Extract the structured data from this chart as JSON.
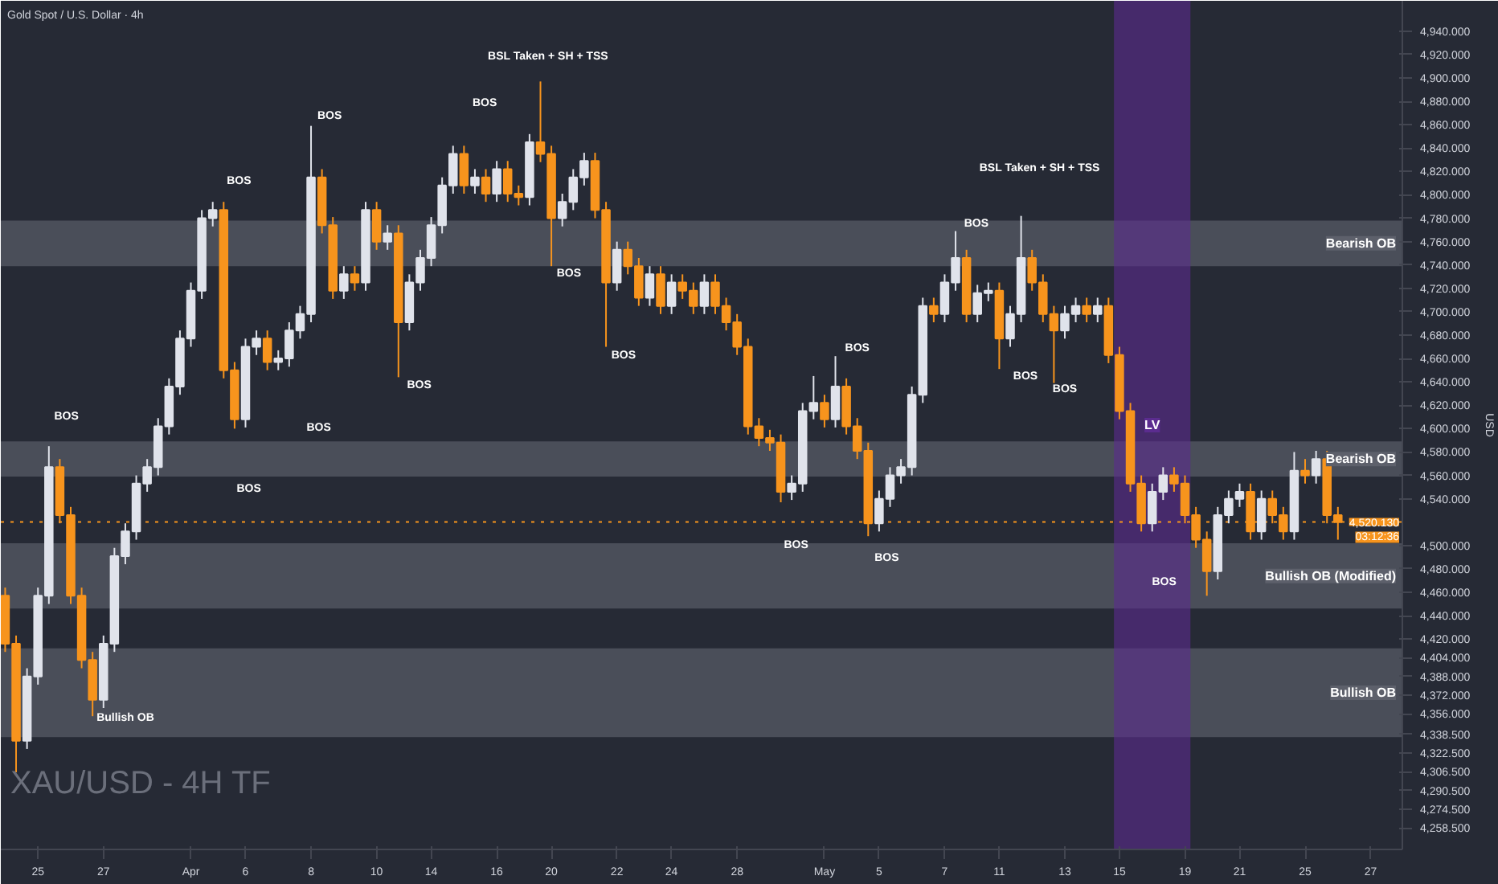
{
  "chart_data": {
    "type": "candlestick",
    "title": "XAU/USD - 4H TF",
    "subtitle": "Gold Spot / U.S. Dollar · 4h",
    "ylabel": "USD",
    "categories": [
      null,
      null,
      null,
      "25",
      null,
      null,
      null,
      null,
      null,
      "27",
      null,
      null,
      null,
      null,
      null,
      null,
      null,
      "Apr",
      null,
      null,
      null,
      null,
      "6",
      null,
      null,
      null,
      null,
      null,
      "8",
      null,
      null,
      null,
      null,
      null,
      "10",
      null,
      null,
      null,
      null,
      "14",
      null,
      null,
      null,
      null,
      null,
      "16",
      null,
      null,
      null,
      null,
      "20",
      null,
      null,
      null,
      null,
      null,
      "22",
      null,
      null,
      null,
      null,
      "24",
      null,
      null,
      null,
      null,
      null,
      "28",
      null,
      null,
      null,
      null,
      null,
      null,
      null,
      "May",
      null,
      null,
      null,
      null,
      "5",
      null,
      null,
      null,
      null,
      null,
      "7",
      null,
      null,
      null,
      null,
      "11",
      null,
      null,
      null,
      null,
      null,
      "13",
      null,
      null,
      null,
      null,
      "15",
      null,
      null,
      null,
      null,
      null,
      "19",
      null,
      null,
      null,
      null,
      "21",
      null,
      null,
      null,
      null,
      null,
      "25",
      null,
      null,
      null,
      null,
      null,
      "27"
    ],
    "ohlc": [
      [
        4457,
        4464,
        4409,
        4416
      ],
      [
        4416,
        4423,
        4306,
        4333
      ],
      [
        4333,
        4395,
        4326,
        4388
      ],
      [
        4388,
        4464,
        4381,
        4457
      ],
      [
        4457,
        4585,
        4450,
        4567
      ],
      [
        4567,
        4574,
        4519,
        4526
      ],
      [
        4526,
        4533,
        4450,
        4457
      ],
      [
        4457,
        4464,
        4395,
        4402
      ],
      [
        4402,
        4409,
        4354,
        4368
      ],
      [
        4368,
        4423,
        4361,
        4416
      ],
      [
        4416,
        4498,
        4409,
        4491
      ],
      [
        4491,
        4519,
        4484,
        4512
      ],
      [
        4512,
        4560,
        4505,
        4553
      ],
      [
        4553,
        4574,
        4546,
        4567
      ],
      [
        4567,
        4609,
        4560,
        4602
      ],
      [
        4602,
        4643,
        4595,
        4636
      ],
      [
        4636,
        4684,
        4629,
        4677
      ],
      [
        4677,
        4725,
        4670,
        4718
      ],
      [
        4718,
        4787,
        4711,
        4780
      ],
      [
        4780,
        4794,
        4773,
        4787
      ],
      [
        4787,
        4794,
        4643,
        4650
      ],
      [
        4650,
        4657,
        4600,
        4608
      ],
      [
        4608,
        4677,
        4601,
        4670
      ],
      [
        4670,
        4684,
        4663,
        4677
      ],
      [
        4677,
        4684,
        4650,
        4657
      ],
      [
        4657,
        4667,
        4650,
        4660
      ],
      [
        4660,
        4691,
        4653,
        4684
      ],
      [
        4684,
        4705,
        4677,
        4698
      ],
      [
        4698,
        4859,
        4691,
        4815
      ],
      [
        4815,
        4822,
        4767,
        4774
      ],
      [
        4774,
        4781,
        4711,
        4718
      ],
      [
        4718,
        4739,
        4711,
        4732
      ],
      [
        4732,
        4739,
        4718,
        4725
      ],
      [
        4725,
        4794,
        4718,
        4787
      ],
      [
        4787,
        4794,
        4753,
        4760
      ],
      [
        4760,
        4774,
        4753,
        4767
      ],
      [
        4767,
        4774,
        4644,
        4691
      ],
      [
        4691,
        4732,
        4684,
        4725
      ],
      [
        4725,
        4753,
        4718,
        4746
      ],
      [
        4746,
        4781,
        4739,
        4774
      ],
      [
        4774,
        4815,
        4767,
        4808
      ],
      [
        4808,
        4842,
        4801,
        4835
      ],
      [
        4835,
        4842,
        4801,
        4808
      ],
      [
        4808,
        4822,
        4801,
        4815
      ],
      [
        4815,
        4822,
        4794,
        4801
      ],
      [
        4801,
        4829,
        4794,
        4822
      ],
      [
        4822,
        4829,
        4794,
        4801
      ],
      [
        4801,
        4808,
        4791,
        4798
      ],
      [
        4798,
        4852,
        4791,
        4845
      ],
      [
        4845,
        4897,
        4828,
        4835
      ],
      [
        4835,
        4842,
        4739,
        4780
      ],
      [
        4780,
        4801,
        4773,
        4794
      ],
      [
        4794,
        4822,
        4787,
        4815
      ],
      [
        4815,
        4836,
        4808,
        4829
      ],
      [
        4829,
        4836,
        4780,
        4787
      ],
      [
        4787,
        4794,
        4670,
        4725
      ],
      [
        4725,
        4760,
        4718,
        4753
      ],
      [
        4753,
        4760,
        4732,
        4739
      ],
      [
        4739,
        4746,
        4705,
        4712
      ],
      [
        4712,
        4739,
        4705,
        4732
      ],
      [
        4732,
        4739,
        4698,
        4705
      ],
      [
        4705,
        4732,
        4698,
        4725
      ],
      [
        4725,
        4732,
        4711,
        4718
      ],
      [
        4718,
        4725,
        4698,
        4705
      ],
      [
        4705,
        4732,
        4698,
        4725
      ],
      [
        4725,
        4732,
        4698,
        4705
      ],
      [
        4705,
        4712,
        4684,
        4691
      ],
      [
        4691,
        4698,
        4663,
        4670
      ],
      [
        4670,
        4677,
        4595,
        4602
      ],
      [
        4602,
        4609,
        4585,
        4592
      ],
      [
        4592,
        4599,
        4581,
        4588
      ],
      [
        4588,
        4595,
        4537,
        4546
      ],
      [
        4546,
        4560,
        4539,
        4553
      ],
      [
        4553,
        4622,
        4546,
        4615
      ],
      [
        4615,
        4645,
        4608,
        4622
      ],
      [
        4622,
        4629,
        4601,
        4608
      ],
      [
        4608,
        4662,
        4601,
        4636
      ],
      [
        4636,
        4643,
        4595,
        4602
      ],
      [
        4602,
        4609,
        4574,
        4581
      ],
      [
        4581,
        4588,
        4508,
        4519
      ],
      [
        4519,
        4547,
        4512,
        4540
      ],
      [
        4540,
        4567,
        4533,
        4560
      ],
      [
        4560,
        4574,
        4553,
        4567
      ],
      [
        4567,
        4636,
        4560,
        4629
      ],
      [
        4629,
        4712,
        4622,
        4705
      ],
      [
        4705,
        4712,
        4691,
        4698
      ],
      [
        4698,
        4732,
        4691,
        4725
      ],
      [
        4725,
        4769,
        4718,
        4746
      ],
      [
        4746,
        4753,
        4691,
        4698
      ],
      [
        4698,
        4723,
        4691,
        4716
      ],
      [
        4716,
        4725,
        4709,
        4718
      ],
      [
        4718,
        4725,
        4651,
        4677
      ],
      [
        4677,
        4705,
        4670,
        4698
      ],
      [
        4698,
        4782,
        4691,
        4746
      ],
      [
        4746,
        4753,
        4718,
        4725
      ],
      [
        4725,
        4732,
        4691,
        4698
      ],
      [
        4698,
        4705,
        4639,
        4684
      ],
      [
        4684,
        4705,
        4677,
        4698
      ],
      [
        4698,
        4712,
        4691,
        4705
      ],
      [
        4705,
        4712,
        4691,
        4698
      ],
      [
        4698,
        4712,
        4691,
        4705
      ],
      [
        4705,
        4712,
        4656,
        4663
      ],
      [
        4663,
        4670,
        4608,
        4615
      ],
      [
        4615,
        4622,
        4546,
        4553
      ],
      [
        4553,
        4560,
        4512,
        4519
      ],
      [
        4519,
        4553,
        4512,
        4546
      ],
      [
        4546,
        4567,
        4539,
        4560
      ],
      [
        4560,
        4567,
        4546,
        4553
      ],
      [
        4553,
        4560,
        4519,
        4526
      ],
      [
        4526,
        4533,
        4498,
        4505
      ],
      [
        4505,
        4512,
        4457,
        4478
      ],
      [
        4478,
        4533,
        4471,
        4526
      ],
      [
        4526,
        4547,
        4519,
        4540
      ],
      [
        4540,
        4553,
        4533,
        4546
      ],
      [
        4546,
        4553,
        4505,
        4512
      ],
      [
        4512,
        4547,
        4505,
        4540
      ],
      [
        4540,
        4547,
        4519,
        4526
      ],
      [
        4526,
        4533,
        4505,
        4512
      ],
      [
        4512,
        4580,
        4505,
        4564
      ],
      [
        4564,
        4574,
        4553,
        4560
      ],
      [
        4560,
        4581,
        4553,
        4574
      ],
      [
        4574,
        4581,
        4519,
        4526
      ],
      [
        4526,
        4533,
        4505,
        4520
      ],
      null,
      null,
      null
    ],
    "colors": [
      "#f7941d",
      "#f7941d",
      "#e0e3eb",
      "#e0e3eb",
      "#e0e3eb",
      "#f7941d",
      "#f7941d",
      "#f7941d",
      "#f7941d",
      "#e0e3eb",
      "#e0e3eb",
      "#e0e3eb",
      "#e0e3eb",
      "#e0e3eb",
      "#e0e3eb",
      "#e0e3eb",
      "#e0e3eb",
      "#e0e3eb",
      "#e0e3eb",
      "#e0e3eb",
      "#f7941d",
      "#f7941d",
      "#e0e3eb",
      "#e0e3eb",
      "#f7941d",
      "#e0e3eb",
      "#e0e3eb",
      "#e0e3eb",
      "#e0e3eb",
      "#f7941d",
      "#f7941d",
      "#e0e3eb",
      "#f7941d",
      "#e0e3eb",
      "#f7941d",
      "#e0e3eb",
      "#f7941d",
      "#e0e3eb",
      "#e0e3eb",
      "#e0e3eb",
      "#e0e3eb",
      "#e0e3eb",
      "#f7941d",
      "#e0e3eb",
      "#f7941d",
      "#e0e3eb",
      "#f7941d",
      "#f7941d",
      "#e0e3eb",
      "#f7941d",
      "#f7941d",
      "#e0e3eb",
      "#e0e3eb",
      "#e0e3eb",
      "#f7941d",
      "#f7941d",
      "#e0e3eb",
      "#f7941d",
      "#f7941d",
      "#e0e3eb",
      "#f7941d",
      "#e0e3eb",
      "#f7941d",
      "#f7941d",
      "#e0e3eb",
      "#f7941d",
      "#f7941d",
      "#f7941d",
      "#f7941d",
      "#f7941d",
      "#f7941d",
      "#f7941d",
      "#e0e3eb",
      "#e0e3eb",
      "#e0e3eb",
      "#f7941d",
      "#e0e3eb",
      "#f7941d",
      "#f7941d",
      "#f7941d",
      "#e0e3eb",
      "#e0e3eb",
      "#e0e3eb",
      "#e0e3eb",
      "#e0e3eb",
      "#f7941d",
      "#e0e3eb",
      "#e0e3eb",
      "#f7941d",
      "#e0e3eb",
      "#e0e3eb",
      "#f7941d",
      "#e0e3eb",
      "#e0e3eb",
      "#f7941d",
      "#f7941d",
      "#f7941d",
      "#e0e3eb",
      "#e0e3eb",
      "#f7941d",
      "#e0e3eb",
      "#f7941d",
      "#f7941d",
      "#f7941d",
      "#f7941d",
      "#e0e3eb",
      "#e0e3eb",
      "#f7941d",
      "#f7941d",
      "#f7941d",
      "#f7941d",
      "#e0e3eb",
      "#e0e3eb",
      "#e0e3eb",
      "#f7941d",
      "#e0e3eb",
      "#f7941d",
      "#f7941d",
      "#e0e3eb",
      "#f7941d",
      "#e0e3eb",
      "#f7941d",
      "#f7941d",
      null,
      null,
      null
    ],
    "ylim": [
      4240,
      4966
    ],
    "yticks": [
      {
        "value": 4940,
        "label": "4,940.000"
      },
      {
        "value": 4920,
        "label": "4,920.000"
      },
      {
        "value": 4900,
        "label": "4,900.000"
      },
      {
        "value": 4880,
        "label": "4,880.000"
      },
      {
        "value": 4860,
        "label": "4,860.000"
      },
      {
        "value": 4840,
        "label": "4,840.000"
      },
      {
        "value": 4820,
        "label": "4,820.000"
      },
      {
        "value": 4800,
        "label": "4,800.000"
      },
      {
        "value": 4780,
        "label": "4,780.000"
      },
      {
        "value": 4760,
        "label": "4,760.000"
      },
      {
        "value": 4740,
        "label": "4,740.000"
      },
      {
        "value": 4720,
        "label": "4,720.000"
      },
      {
        "value": 4700,
        "label": "4,700.000"
      },
      {
        "value": 4680,
        "label": "4,680.000"
      },
      {
        "value": 4660,
        "label": "4,660.000"
      },
      {
        "value": 4640,
        "label": "4,640.000"
      },
      {
        "value": 4620,
        "label": "4,620.000"
      },
      {
        "value": 4600,
        "label": "4,600.000"
      },
      {
        "value": 4580,
        "label": "4,580.000"
      },
      {
        "value": 4560,
        "label": "4,560.000"
      },
      {
        "value": 4540,
        "label": "4,540.000"
      },
      {
        "value": 4500,
        "label": "4,500.000"
      },
      {
        "value": 4480,
        "label": "4,480.000"
      },
      {
        "value": 4460,
        "label": "4,460.000"
      },
      {
        "value": 4440,
        "label": "4,440.000"
      },
      {
        "value": 4420,
        "label": "4,420.000"
      },
      {
        "value": 4404,
        "label": "4,404.000"
      },
      {
        "value": 4388,
        "label": "4,388.000"
      },
      {
        "value": 4372,
        "label": "4,372.000"
      },
      {
        "value": 4356,
        "label": "4,356.000"
      },
      {
        "value": 4338.5,
        "label": "4,338.500"
      },
      {
        "value": 4322.5,
        "label": "4,322.500"
      },
      {
        "value": 4306.5,
        "label": "4,306.500"
      },
      {
        "value": 4290.5,
        "label": "4,290.500"
      },
      {
        "value": 4274.5,
        "label": "4,274.500"
      },
      {
        "value": 4258.5,
        "label": "4,258.500"
      }
    ],
    "grid": false,
    "ref_lines": [
      {
        "axis": "y",
        "value": 4520.13,
        "label": "4,520.130",
        "color": "#f7941d",
        "line_style": "dotted"
      }
    ],
    "bands": [
      {
        "axis": "y",
        "from": 4739,
        "to": 4778,
        "label": "Bearish OB",
        "color": "#787b86"
      },
      {
        "axis": "y",
        "from": 4559,
        "to": 4589,
        "label": "Bearish OB",
        "color": "#787b86"
      },
      {
        "axis": "y",
        "from": 4446,
        "to": 4502,
        "label": "Bullish OB (Modified)",
        "color": "#787b86"
      },
      {
        "axis": "y",
        "from": 4336,
        "to": 4412,
        "label": "Bullish OB",
        "color": "#787b86"
      },
      {
        "axis": "x",
        "from": "15",
        "to": "19",
        "label": "LV",
        "color": "#5b2c8f"
      }
    ],
    "annotations": [
      "BSL Taken + SH + TSS",
      "BSL Taken + SH + TSS",
      "BOS",
      "BOS",
      "BOS",
      "BOS",
      "BOS",
      "BOS",
      "BOS",
      "BOS",
      "BOS",
      "BOS",
      "BOS",
      "BOS",
      "BOS",
      "BOS",
      "BOS",
      "BOS",
      "Bullish OB",
      "03:12:36"
    ]
  }
}
